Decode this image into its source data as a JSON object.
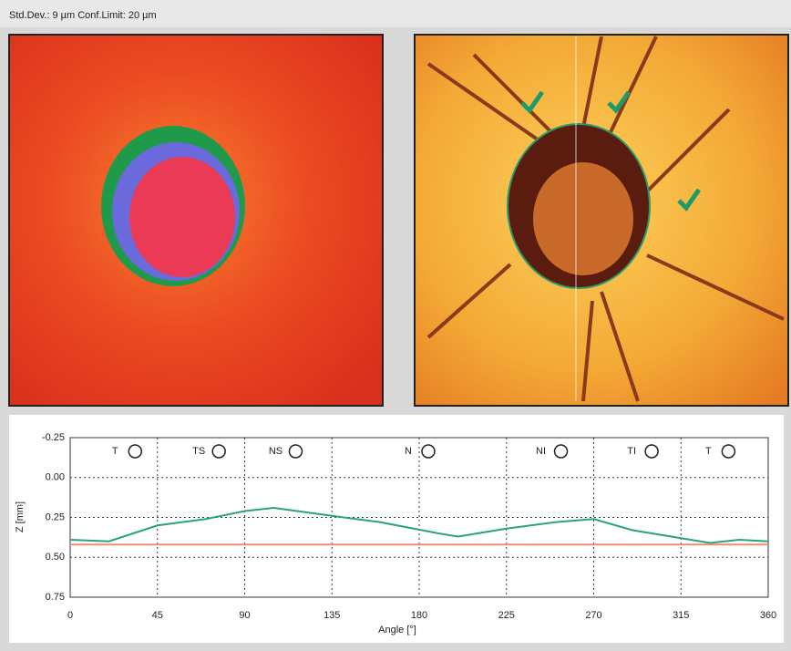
{
  "header": {
    "status": "Std.Dev.: 9 µm   Conf.Limit: 20 µm"
  },
  "chart_data": {
    "type": "line",
    "xlabel": "Angle [°]",
    "ylabel": "Z [mm]",
    "sectors": [
      "T",
      "TS",
      "NS",
      "N",
      "NI",
      "TI",
      "T"
    ],
    "xlim": [
      0,
      360
    ],
    "xticks": [
      0,
      45,
      90,
      135,
      180,
      225,
      270,
      315,
      360
    ],
    "ylim": [
      -0.25,
      0.75
    ],
    "y_inverted": true,
    "yticks": [
      -0.25,
      {
        "value": 0,
        "label": "0.00"
      },
      0.25,
      {
        "value": 0.5,
        "label": "0.50"
      },
      0.75
    ],
    "grid": true,
    "series": [
      {
        "color": "#2aa37a",
        "x": [
          0,
          20,
          45,
          70,
          90,
          105,
          135,
          160,
          190,
          200,
          225,
          250,
          270,
          290,
          315,
          330,
          345,
          360
        ],
        "values": [
          0.39,
          0.4,
          0.3,
          0.26,
          0.21,
          0.19,
          0.24,
          0.28,
          0.35,
          0.37,
          0.32,
          0.28,
          0.26,
          0.33,
          0.38,
          0.41,
          0.39,
          0.4
        ]
      },
      {
        "color": "#f08a7a",
        "x": [
          0,
          360
        ],
        "values": [
          0.42,
          0.42
        ]
      }
    ]
  }
}
